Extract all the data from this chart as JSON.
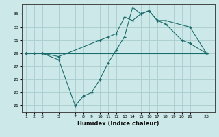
{
  "title": "",
  "xlabel": "Humidex (Indice chaleur)",
  "ylabel": "",
  "bg_color": "#cce8e8",
  "grid_color": "#aacccc",
  "line_color": "#1a6b6b",
  "xlim": [
    0.5,
    24
  ],
  "ylim": [
    20,
    36.5
  ],
  "yticks": [
    21,
    23,
    25,
    27,
    29,
    31,
    33,
    35
  ],
  "xticks": [
    1,
    2,
    3,
    5,
    7,
    8,
    9,
    10,
    11,
    12,
    13,
    14,
    15,
    16,
    17,
    18,
    19,
    20,
    21,
    23
  ],
  "series": [
    {
      "x": [
        1,
        2,
        3,
        23
      ],
      "y": [
        29,
        29,
        29,
        29
      ]
    },
    {
      "x": [
        1,
        3,
        5,
        10,
        11,
        12,
        13,
        14,
        15,
        16,
        17,
        18,
        20,
        21,
        23
      ],
      "y": [
        29,
        29,
        28.5,
        31,
        31.5,
        32,
        34.5,
        34,
        35,
        35.5,
        34,
        33.5,
        31,
        30.5,
        29
      ]
    },
    {
      "x": [
        1,
        3,
        5,
        7,
        8,
        9,
        10,
        11,
        12,
        13,
        14,
        15,
        16,
        17,
        18,
        21,
        23
      ],
      "y": [
        29,
        29,
        28,
        21,
        22.5,
        23,
        25,
        27.5,
        29.5,
        31.5,
        36,
        35,
        35.5,
        34,
        34,
        33,
        29
      ]
    }
  ]
}
